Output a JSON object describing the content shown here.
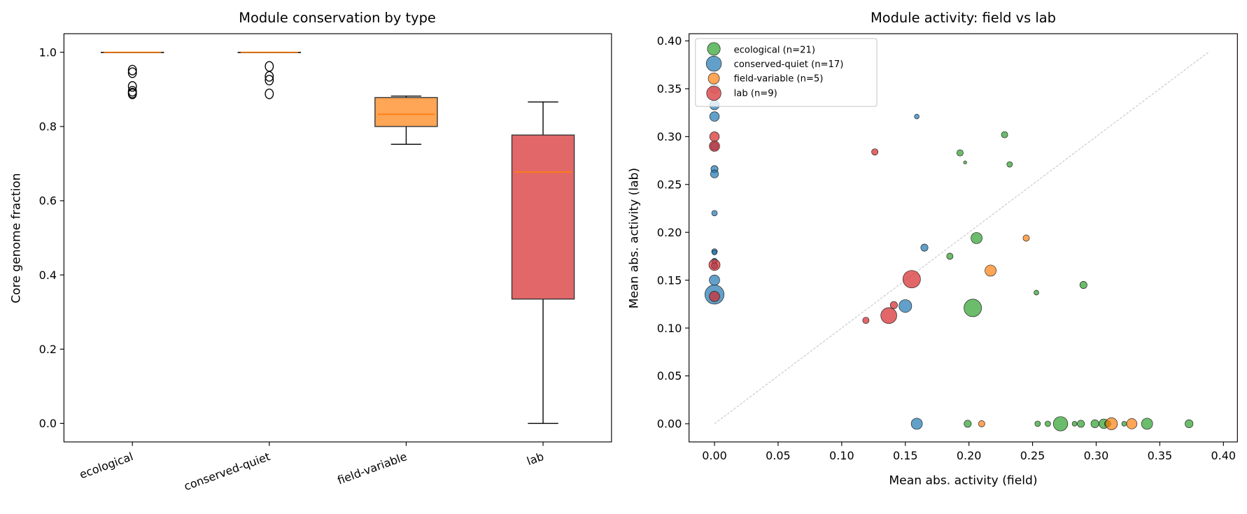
{
  "chart_data": [
    {
      "type": "box",
      "title": "Module conservation by type",
      "xlabel": "",
      "ylabel": "Core genome fraction",
      "categories": [
        "ecological",
        "conserved-quiet",
        "field-variable",
        "lab"
      ],
      "ylim": [
        -0.05,
        1.05
      ],
      "yticks": [
        "0.0",
        "0.2",
        "0.4",
        "0.6",
        "0.8",
        "1.0"
      ],
      "grid": false,
      "boxes": [
        {
          "category": "ecological",
          "whisker_low": 1.0,
          "q1": 1.0,
          "median": 1.0,
          "q3": 1.0,
          "whisker_high": 1.0,
          "outliers": [
            0.952,
            0.945,
            0.908,
            0.895,
            0.89,
            0.888
          ],
          "color": "#2ca02c"
        },
        {
          "category": "conserved-quiet",
          "whisker_low": 1.0,
          "q1": 1.0,
          "median": 1.0,
          "q3": 1.0,
          "whisker_high": 1.0,
          "outliers": [
            0.962,
            0.935,
            0.925,
            0.888
          ],
          "color": "#1f77b4"
        },
        {
          "category": "field-variable",
          "whisker_low": 0.752,
          "q1": 0.8,
          "median": 0.833,
          "q3": 0.878,
          "whisker_high": 0.882,
          "outliers": [],
          "color": "#ff7f0e"
        },
        {
          "category": "lab",
          "whisker_low": 0.0,
          "q1": 0.335,
          "median": 0.677,
          "q3": 0.777,
          "whisker_high": 0.866,
          "outliers": [],
          "color": "#d62728"
        }
      ],
      "median_color": "#ff7f0e"
    },
    {
      "type": "scatter",
      "title": "Module activity: field vs lab",
      "xlabel": "Mean abs. activity (field)",
      "ylabel": "Mean abs. activity (lab)",
      "xlim": [
        -0.02,
        0.411
      ],
      "ylim": [
        -0.019,
        0.4075
      ],
      "xticks": [
        "0.00",
        "0.05",
        "0.10",
        "0.15",
        "0.20",
        "0.25",
        "0.30",
        "0.35",
        "0.40"
      ],
      "yticks": [
        "0.00",
        "0.05",
        "0.10",
        "0.15",
        "0.20",
        "0.25",
        "0.30",
        "0.35",
        "0.40"
      ],
      "grid": false,
      "diagonal": {
        "from": 0,
        "to": 0.388,
        "color": "#bbbbbb",
        "style": "dashed"
      },
      "legend_position": "top-left",
      "series": [
        {
          "name": "ecological (n=21)",
          "color": "#2ca02c",
          "points": [
            [
              0.228,
              0.302,
              4
            ],
            [
              0.193,
              0.283,
              4
            ],
            [
              0.197,
              0.273,
              2
            ],
            [
              0.232,
              0.271,
              3.5
            ],
            [
              0.206,
              0.194,
              7
            ],
            [
              0.185,
              0.175,
              4
            ],
            [
              0.253,
              0.137,
              3
            ],
            [
              0.29,
              0.145,
              4.5
            ],
            [
              0.203,
              0.121,
              11
            ],
            [
              0.199,
              0,
              4.5
            ],
            [
              0.254,
              0,
              3.5
            ],
            [
              0.262,
              0,
              3.5
            ],
            [
              0.272,
              0,
              9
            ],
            [
              0.283,
              0,
              3
            ],
            [
              0.288,
              0,
              4.5
            ],
            [
              0.299,
              0,
              5
            ],
            [
              0.306,
              0,
              6
            ],
            [
              0.309,
              0,
              4
            ],
            [
              0.322,
              0,
              3
            ],
            [
              0.34,
              0,
              7
            ],
            [
              0.373,
              0,
              5
            ]
          ]
        },
        {
          "name": "conserved-quiet (n=17)",
          "color": "#1f77b4",
          "points": [
            [
              0,
              0.35,
              6
            ],
            [
              0,
              0.333,
              6
            ],
            [
              0,
              0.321,
              6
            ],
            [
              0,
              0.29,
              5
            ],
            [
              0,
              0.266,
              4.5
            ],
            [
              0,
              0.261,
              5
            ],
            [
              0,
              0.22,
              3.5
            ],
            [
              0,
              0.18,
              3.5
            ],
            [
              0,
              0.179,
              3
            ],
            [
              0,
              0.17,
              3.5
            ],
            [
              0,
              0.165,
              4
            ],
            [
              0,
              0.15,
              6.5
            ],
            [
              0,
              0.135,
              12
            ],
            [
              0.159,
              0.321,
              3
            ],
            [
              0.165,
              0.184,
              4.5
            ],
            [
              0.15,
              0.123,
              8
            ],
            [
              0.159,
              0,
              7
            ]
          ]
        },
        {
          "name": "field-variable (n=5)",
          "color": "#ff7f0e",
          "points": [
            [
              0.245,
              0.194,
              4
            ],
            [
              0.217,
              0.16,
              7
            ],
            [
              0.21,
              0,
              4
            ],
            [
              0.312,
              0,
              7.5
            ],
            [
              0.328,
              0,
              6.5
            ]
          ]
        },
        {
          "name": "lab (n=9)",
          "color": "#d62728",
          "points": [
            [
              0,
              0.3,
              6
            ],
            [
              0,
              0.29,
              6.5
            ],
            [
              0,
              0.166,
              7
            ],
            [
              0,
              0.133,
              6.5
            ],
            [
              0.126,
              0.284,
              4
            ],
            [
              0.155,
              0.151,
              11
            ],
            [
              0.141,
              0.124,
              4.5
            ],
            [
              0.119,
              0.108,
              4
            ],
            [
              0.137,
              0.113,
              10
            ]
          ]
        }
      ]
    }
  ]
}
